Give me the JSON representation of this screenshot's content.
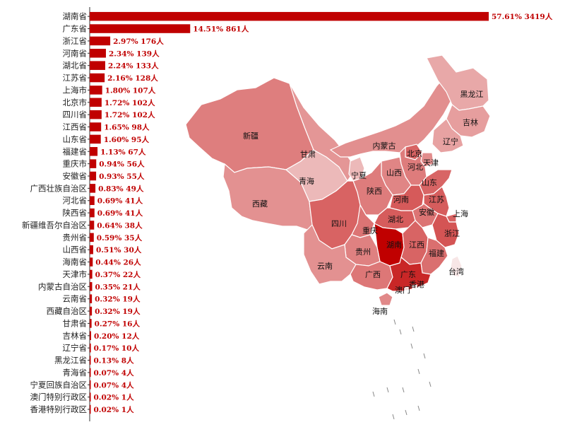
{
  "chart_data": [
    {
      "type": "bar",
      "orientation": "horizontal",
      "categories": [
        "湖南省",
        "广东省",
        "浙江省",
        "河南省",
        "湖北省",
        "江苏省",
        "上海市",
        "北京市",
        "四川省",
        "江西省",
        "山东省",
        "福建省",
        "重庆市",
        "安徽省",
        "广西壮族自治区",
        "河北省",
        "陕西省",
        "新疆维吾尔自治区",
        "贵州省",
        "山西省",
        "海南省",
        "天津市",
        "内蒙古自治区",
        "云南省",
        "西藏自治区",
        "甘肃省",
        "吉林省",
        "辽宁省",
        "黑龙江省",
        "青海省",
        "宁夏回族自治区",
        "澳门特别行政区",
        "香港特别行政区"
      ],
      "values": [
        3419,
        861,
        176,
        139,
        133,
        128,
        107,
        102,
        102,
        98,
        95,
        67,
        56,
        55,
        49,
        41,
        41,
        38,
        35,
        30,
        26,
        22,
        21,
        19,
        19,
        16,
        12,
        10,
        8,
        4,
        4,
        1,
        1
      ],
      "labels": [
        "57.61% 3419人",
        "14.51% 861人",
        "2.97% 176人",
        "2.34% 139人",
        "2.24% 133人",
        "2.16% 128人",
        "1.80% 107人",
        "1.72% 102人",
        "1.72% 102人",
        "1.65% 98人",
        "1.60% 95人",
        "1.13% 67人",
        "0.94% 56人",
        "0.93% 55人",
        "0.83% 49人",
        "0.69% 41人",
        "0.69% 41人",
        "0.64% 38人",
        "0.59% 35人",
        "0.51% 30人",
        "0.44% 26人",
        "0.37% 22人",
        "0.35% 21人",
        "0.32% 19人",
        "0.32% 19人",
        "0.27% 16人",
        "0.20% 12人",
        "0.17% 10人",
        "0.13% 8人",
        "0.07% 4人",
        "0.07% 4人",
        "0.02% 1人",
        "0.02% 1人"
      ],
      "bar_color": "#c00000"
    },
    {
      "type": "heatmap",
      "kind": "choropleth-map",
      "regions": [
        {
          "name": "新疆",
          "value": 38
        },
        {
          "name": "西藏",
          "value": 19
        },
        {
          "name": "青海",
          "value": 4
        },
        {
          "name": "甘肃",
          "value": 16
        },
        {
          "name": "内蒙古",
          "value": 21
        },
        {
          "name": "黑龙江",
          "value": 8
        },
        {
          "name": "吉林",
          "value": 12
        },
        {
          "name": "辽宁",
          "value": 10
        },
        {
          "name": "宁夏",
          "value": 4
        },
        {
          "name": "北京",
          "value": 102
        },
        {
          "name": "天津",
          "value": 22
        },
        {
          "name": "河北",
          "value": 41
        },
        {
          "name": "山西",
          "value": 30
        },
        {
          "name": "陕西",
          "value": 41
        },
        {
          "name": "山东",
          "value": 95
        },
        {
          "name": "河南",
          "value": 139
        },
        {
          "name": "江苏",
          "value": 128
        },
        {
          "name": "上海",
          "value": 107
        },
        {
          "name": "安徽",
          "value": 55
        },
        {
          "name": "湖北",
          "value": 133
        },
        {
          "name": "浙江",
          "value": 176
        },
        {
          "name": "四川",
          "value": 102
        },
        {
          "name": "重庆",
          "value": 56
        },
        {
          "name": "湖南",
          "value": 3419
        },
        {
          "name": "江西",
          "value": 98
        },
        {
          "name": "福建",
          "value": 67
        },
        {
          "name": "贵州",
          "value": 35
        },
        {
          "name": "云南",
          "value": 19
        },
        {
          "name": "广西",
          "value": 49
        },
        {
          "name": "广东",
          "value": 861
        },
        {
          "name": "台湾",
          "value": 0
        },
        {
          "name": "香港",
          "value": 1
        },
        {
          "name": "澳门",
          "value": 1
        },
        {
          "name": "海南",
          "value": 26
        }
      ],
      "color_low": "#f7e6e6",
      "color_high": "#c00000"
    }
  ]
}
